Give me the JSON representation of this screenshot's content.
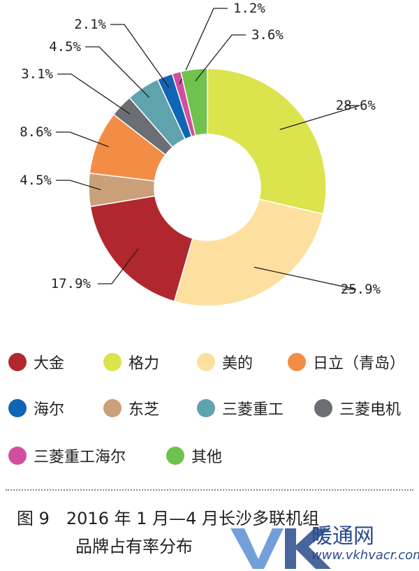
{
  "chart_data": {
    "type": "pie",
    "donut": true,
    "title": "",
    "slices": [
      {
        "name": "格力",
        "value": 28.6,
        "label": "28.6%",
        "color": "#dbe34d"
      },
      {
        "name": "美的",
        "value": 25.9,
        "label": "25.9%",
        "color": "#fddf9f"
      },
      {
        "name": "大金",
        "value": 17.9,
        "label": "17.9%",
        "color": "#b1272e"
      },
      {
        "name": "东芝",
        "value": 4.5,
        "label": "4.5%",
        "color": "#c9a07a"
      },
      {
        "name": "日立（青岛）",
        "value": 8.6,
        "label": "8.6%",
        "color": "#f38d45"
      },
      {
        "name": "三菱电机",
        "value": 3.1,
        "label": "3.1%",
        "color": "#6b6e73"
      },
      {
        "name": "三菱重工",
        "value": 4.5,
        "label": "4.5%",
        "color": "#5fa3ad"
      },
      {
        "name": "海尔",
        "value": 2.1,
        "label": "2.1%",
        "color": "#0f64b5"
      },
      {
        "name": "三菱重工海尔",
        "value": 1.2,
        "label": "1.2%",
        "color": "#d14f9e"
      },
      {
        "name": "其他",
        "value": 3.6,
        "label": "3.6%",
        "color": "#6fc24d"
      }
    ],
    "legend": {
      "placement": "bottom",
      "entries": [
        {
          "name": "大金",
          "color": "#b1272e"
        },
        {
          "name": "格力",
          "color": "#dbe34d"
        },
        {
          "name": "美的",
          "color": "#fddf9f"
        },
        {
          "name": "日立（青岛）",
          "color": "#f38d45"
        },
        {
          "name": "海尔",
          "color": "#0f64b5"
        },
        {
          "name": "东芝",
          "color": "#c9a07a"
        },
        {
          "name": "三菱重工",
          "color": "#5fa3ad"
        },
        {
          "name": "三菱电机",
          "color": "#6b6e73"
        },
        {
          "name": "三菱重工海尔",
          "color": "#d14f9e"
        },
        {
          "name": "其他",
          "color": "#6fc24d"
        }
      ]
    }
  },
  "caption": {
    "line1": "图 9　2016 年 1 月—4 月长沙多联机组",
    "line2": "品牌占有率分布"
  },
  "watermark": {
    "logo": "VK",
    "text": "暖通网",
    "url": "www.vkhvacr.com",
    "color": "#2a4b8d"
  }
}
